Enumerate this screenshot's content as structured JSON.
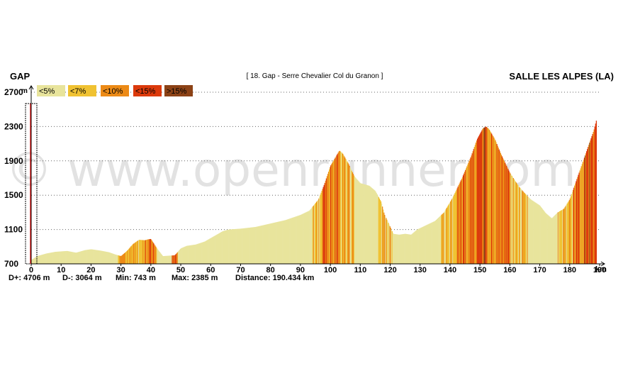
{
  "header": {
    "start": "GAP",
    "title": "[ 18. Gap - Serre Chevalier Col du Granon ]",
    "end": "SALLE LES ALPES (LA)"
  },
  "watermark": "© www.openrunner.com",
  "y_unit": "m",
  "x_unit": "km",
  "legend": [
    {
      "label": "<5%",
      "color": "#e8e49c"
    },
    {
      "label": "<7%",
      "color": "#f0c232"
    },
    {
      "label": "<10%",
      "color": "#ec8a16"
    },
    {
      "label": "<15%",
      "color": "#dc3a0c"
    },
    {
      "label": ">15%",
      "color": "#8c4216"
    }
  ],
  "stats": {
    "dplus": "D+: 4706 m",
    "dminus": "D-: 3064 m",
    "min": "Min: 743 m",
    "max": "Max: 2385 m",
    "distance": "Distance: 190.434 km"
  },
  "chart_data": {
    "type": "area",
    "xlabel": "km",
    "ylabel": "m",
    "xlim": [
      0,
      190
    ],
    "ylim": [
      700,
      2700
    ],
    "x_ticks": [
      "0",
      "10",
      "20",
      "30",
      "40",
      "50",
      "60",
      "70",
      "80",
      "90",
      "100",
      "110",
      "120",
      "130",
      "140",
      "150",
      "160",
      "170",
      "180",
      "190"
    ],
    "y_ticks": [
      "2700",
      "2300",
      "1900",
      "1500",
      "1100",
      "700"
    ],
    "gradient_classes": [
      "<5%",
      "<7%",
      "<10%",
      "<15%",
      ">15%"
    ],
    "profile": [
      [
        0,
        743
      ],
      [
        2,
        790
      ],
      [
        5,
        820
      ],
      [
        8,
        840
      ],
      [
        12,
        850
      ],
      [
        15,
        830
      ],
      [
        18,
        860
      ],
      [
        20,
        870
      ],
      [
        23,
        855
      ],
      [
        26,
        835
      ],
      [
        28,
        810
      ],
      [
        30,
        790
      ],
      [
        32,
        850
      ],
      [
        34,
        930
      ],
      [
        36,
        980
      ],
      [
        38,
        975
      ],
      [
        39,
        985
      ],
      [
        40,
        990
      ],
      [
        42,
        880
      ],
      [
        44,
        790
      ],
      [
        46,
        795
      ],
      [
        48,
        800
      ],
      [
        50,
        880
      ],
      [
        52,
        910
      ],
      [
        55,
        925
      ],
      [
        58,
        960
      ],
      [
        60,
        1000
      ],
      [
        62,
        1040
      ],
      [
        64,
        1080
      ],
      [
        66,
        1100
      ],
      [
        70,
        1110
      ],
      [
        75,
        1130
      ],
      [
        80,
        1170
      ],
      [
        85,
        1210
      ],
      [
        90,
        1270
      ],
      [
        93,
        1320
      ],
      [
        96,
        1450
      ],
      [
        98,
        1630
      ],
      [
        100,
        1840
      ],
      [
        102,
        1960
      ],
      [
        103,
        2020
      ],
      [
        104,
        1990
      ],
      [
        106,
        1870
      ],
      [
        108,
        1720
      ],
      [
        110,
        1640
      ],
      [
        113,
        1610
      ],
      [
        115,
        1550
      ],
      [
        117,
        1420
      ],
      [
        118,
        1280
      ],
      [
        120,
        1130
      ],
      [
        121,
        1050
      ],
      [
        123,
        1040
      ],
      [
        125,
        1050
      ],
      [
        127,
        1040
      ],
      [
        129,
        1100
      ],
      [
        132,
        1150
      ],
      [
        135,
        1200
      ],
      [
        138,
        1300
      ],
      [
        141,
        1480
      ],
      [
        144,
        1700
      ],
      [
        147,
        1950
      ],
      [
        149,
        2150
      ],
      [
        151,
        2280
      ],
      [
        152,
        2300
      ],
      [
        153,
        2270
      ],
      [
        155,
        2150
      ],
      [
        157,
        1980
      ],
      [
        160,
        1760
      ],
      [
        163,
        1600
      ],
      [
        165,
        1520
      ],
      [
        167,
        1450
      ],
      [
        170,
        1380
      ],
      [
        172,
        1290
      ],
      [
        174,
        1230
      ],
      [
        176,
        1300
      ],
      [
        178,
        1340
      ],
      [
        180,
        1450
      ],
      [
        182,
        1650
      ],
      [
        184,
        1850
      ],
      [
        186,
        2050
      ],
      [
        188,
        2250
      ],
      [
        189,
        2385
      ]
    ],
    "gradient_bands": [
      {
        "from": 0,
        "to": 29,
        "cls": "<5%"
      },
      {
        "from": 29,
        "to": 32,
        "cls": "<10%"
      },
      {
        "from": 32,
        "to": 38,
        "cls": "<7%"
      },
      {
        "from": 38,
        "to": 42,
        "cls": "<10%"
      },
      {
        "from": 42,
        "to": 47,
        "cls": "<5%"
      },
      {
        "from": 47,
        "to": 49,
        "cls": "<10%"
      },
      {
        "from": 49,
        "to": 94,
        "cls": "<5%"
      },
      {
        "from": 94,
        "to": 97,
        "cls": "<7%"
      },
      {
        "from": 97,
        "to": 103,
        "cls": "<10%"
      },
      {
        "from": 103,
        "to": 108,
        "cls": "<7%"
      },
      {
        "from": 108,
        "to": 116,
        "cls": "<5%"
      },
      {
        "from": 116,
        "to": 121,
        "cls": "<7%"
      },
      {
        "from": 121,
        "to": 128,
        "cls": "<5%"
      },
      {
        "from": 128,
        "to": 137,
        "cls": "<5%"
      },
      {
        "from": 137,
        "to": 142,
        "cls": "<7%"
      },
      {
        "from": 142,
        "to": 149,
        "cls": "<10%"
      },
      {
        "from": 149,
        "to": 152,
        "cls": "<15%"
      },
      {
        "from": 152,
        "to": 160,
        "cls": "<10%"
      },
      {
        "from": 160,
        "to": 166,
        "cls": "<7%"
      },
      {
        "from": 166,
        "to": 176,
        "cls": "<5%"
      },
      {
        "from": 176,
        "to": 181,
        "cls": "<7%"
      },
      {
        "from": 181,
        "to": 185,
        "cls": "<10%"
      },
      {
        "from": 185,
        "to": 189,
        "cls": "<15%"
      }
    ]
  }
}
